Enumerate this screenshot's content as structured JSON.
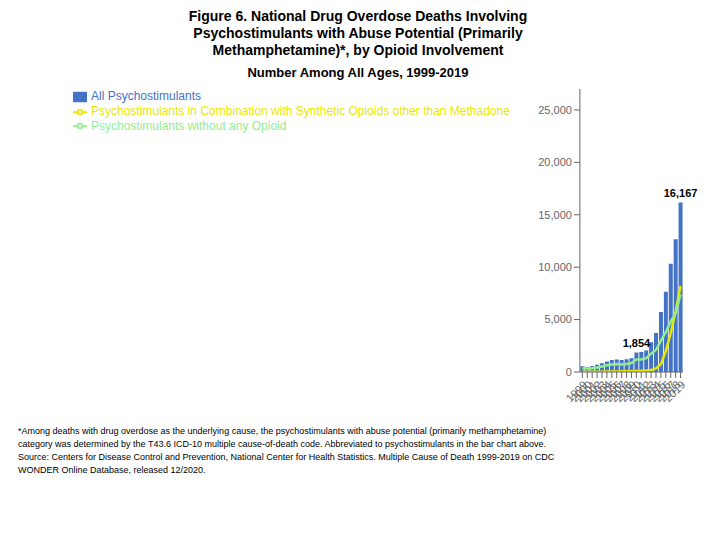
{
  "chart_data": {
    "type": "bar",
    "title": "Figure 6. National Drug Overdose Deaths Involving\nPsychostimulants with Abuse Potential (Primarily\nMethamphetamine)*, by Opioid Involvement",
    "subtitle": "Number Among All Ages, 1999-2019",
    "categories": [
      "1999",
      "2000",
      "2001",
      "2002",
      "2003",
      "2004",
      "2005",
      "2006",
      "2007",
      "2008",
      "2009",
      "2010",
      "2011",
      "2012",
      "2013",
      "2014",
      "2015",
      "2016",
      "2017",
      "2018",
      "2019"
    ],
    "series": [
      {
        "name": "All Psychostimulants",
        "type": "bar",
        "color": "#4472C4",
        "values": [
          547,
          486,
          561,
          697,
          831,
          1013,
          1145,
          1200,
          1145,
          1209,
          1314,
          1854,
          1901,
          2054,
          2850,
          3728,
          5716,
          7663,
          10333,
          12676,
          16167
        ]
      },
      {
        "name": "Psychostimulants in Combination with Synthetic Opioids other than Methadone",
        "type": "line",
        "color": "#E8E800",
        "values": [
          15,
          20,
          25,
          30,
          35,
          40,
          50,
          55,
          60,
          70,
          80,
          95,
          110,
          140,
          200,
          350,
          750,
          2000,
          3700,
          5800,
          8200
        ]
      },
      {
        "name": "Psychostimulants without any Opioid",
        "type": "line",
        "color": "#90EE90",
        "values": [
          350,
          330,
          360,
          430,
          530,
          650,
          720,
          760,
          720,
          770,
          850,
          1200,
          1200,
          1320,
          1750,
          2100,
          3000,
          3800,
          4800,
          5600,
          7400
        ]
      }
    ],
    "ylim": [
      0,
      27000
    ],
    "yticks": [
      0,
      {
        "value": 5000,
        "label": "5,000"
      },
      {
        "value": 10000,
        "label": "10,000"
      },
      {
        "value": 15000,
        "label": "15,000"
      },
      {
        "value": 20000,
        "label": "20,000"
      },
      {
        "value": 25000,
        "label": "25,000"
      }
    ],
    "grid": false,
    "legend": "upper left",
    "annotations": [
      {
        "text": "1,854",
        "x": "2010"
      },
      {
        "text": "16,167",
        "x": "2019"
      }
    ],
    "footnote": "*Among deaths with drug overdose as the underlying cause, the psychostimulants with abuse potential (primarily methamphetamine)\ncategory was determined by the T43.6 ICD-10 multiple cause-of-death code. Abbreviated to psychostimulants in the bar chart above.\nSource: Centers for Disease Control and Prevention, National Center for Health Statistics. Multiple Cause of Death 1999-2019 on CDC\nWONDER Online Database, released 12/2020."
  }
}
